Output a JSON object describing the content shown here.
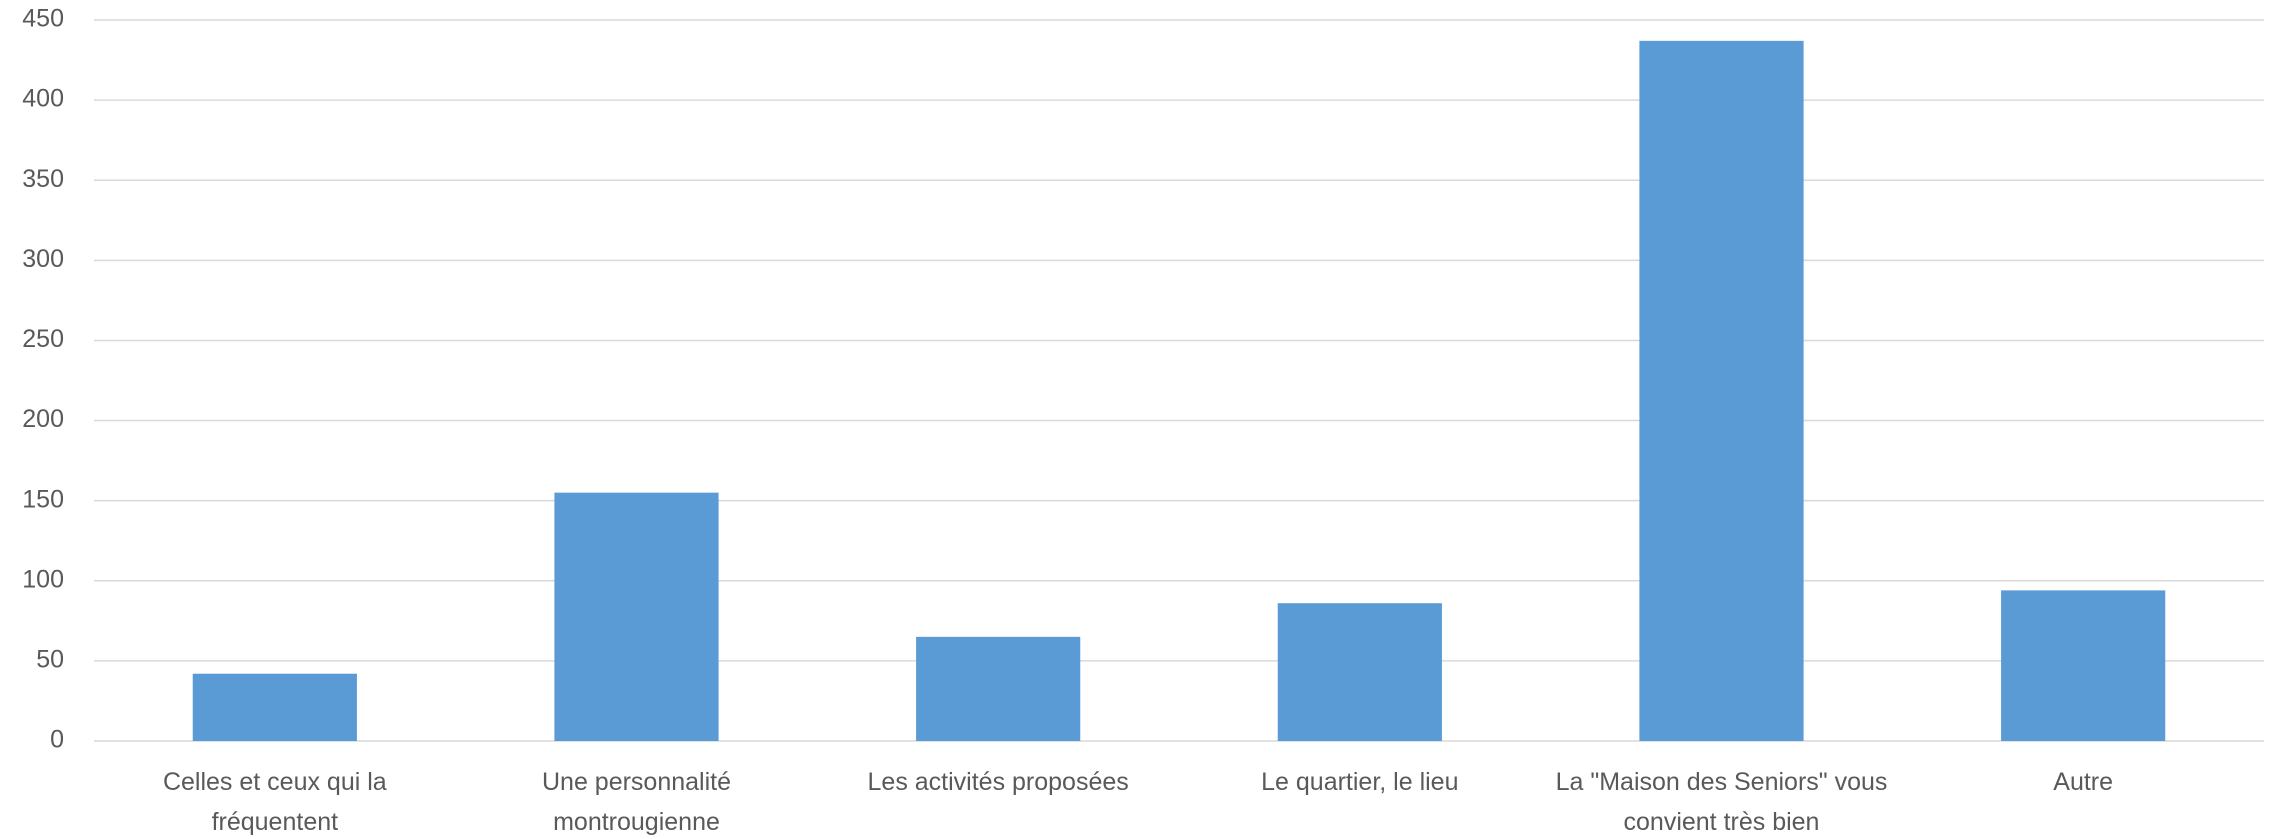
{
  "chart_data": {
    "type": "bar",
    "categories": [
      "Celles et ceux qui la fréquentent",
      "Une personnalité montrougienne",
      "Les activités proposées",
      "Le quartier, le lieu",
      "La \"Maison des Seniors\" vous convient très bien",
      "Autre"
    ],
    "values": [
      42,
      155,
      65,
      86,
      437,
      94
    ],
    "color": "#5b9bd5",
    "ylim": [
      0,
      450
    ],
    "yticks": [
      0,
      50,
      100,
      150,
      200,
      250,
      300,
      350,
      400,
      450
    ],
    "grid": true
  }
}
